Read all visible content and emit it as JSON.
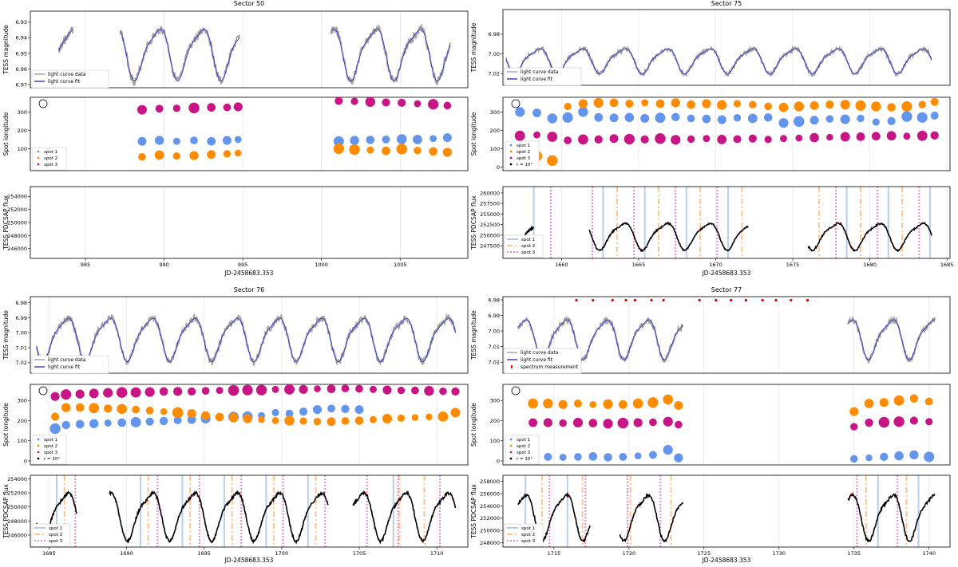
{
  "chart_data": [
    {
      "type": "line",
      "title": "Sector 50",
      "xlabel": "JD-2458683.353",
      "xlim": [
        981.5,
        1009.3
      ],
      "xticks": [
        985,
        990,
        995,
        1000,
        1005
      ],
      "mag_ylabel": "TESS magnitude",
      "mag_ylim": [
        6.923,
        6.972
      ],
      "mag_yticks": [
        6.93,
        6.94,
        6.95,
        6.96,
        6.97
      ],
      "mag_legend": [
        "light curve data",
        "light curve fit"
      ],
      "mag_segments": [
        [
          983.3,
          984.2
        ],
        [
          987.2,
          994.8
        ],
        [
          1000.6,
          1008.2
        ]
      ],
      "period": 2.75,
      "phase": 988.2,
      "mag_mean": 6.949,
      "mag_amp": 0.0155,
      "lon_ylabel": "Spot longitude",
      "lon_ylim": [
        -20,
        380
      ],
      "lon_yticks": [
        100,
        200,
        300
      ],
      "lon_legend": [
        "spot 1",
        "spot 2",
        "spot 3"
      ],
      "spots": [
        {
          "name": "spot 1",
          "times": [
            988.6,
            989.7,
            990.8,
            991.9,
            993.0,
            994.0,
            994.7,
            1001.1,
            1002.1,
            1003.1,
            1004.1,
            1005.1,
            1006.1,
            1007.1,
            1008.0
          ],
          "values": [
            140,
            145,
            140,
            145,
            140,
            145,
            150,
            140,
            145,
            148,
            150,
            152,
            150,
            155,
            160
          ]
        },
        {
          "name": "spot 2",
          "times": [
            988.6,
            989.7,
            990.8,
            991.9,
            993.0,
            994.0,
            994.7,
            1001.1,
            1002.1,
            1003.1,
            1004.1,
            1005.1,
            1006.1,
            1007.1,
            1008.0
          ],
          "values": [
            55,
            65,
            60,
            62,
            68,
            72,
            76,
            100,
            95,
            92,
            88,
            98,
            90,
            85,
            80
          ]
        },
        {
          "name": "spot 3",
          "times": [
            988.6,
            989.7,
            990.8,
            991.9,
            993.0,
            994.0,
            994.7,
            1001.1,
            1002.1,
            1003.1,
            1004.1,
            1005.1,
            1006.1,
            1007.1,
            1008.0
          ],
          "values": [
            312,
            318,
            320,
            322,
            325,
            325,
            328,
            360,
            358,
            355,
            352,
            350,
            345,
            342,
            335
          ]
        }
      ],
      "flux_ylabel": "TESS PDCSAP flux",
      "flux_ylim": [
        244500,
        255500
      ],
      "flux_yticks": [
        246000,
        248000,
        250000,
        252000,
        254000
      ],
      "flux_segments": [],
      "flux_legend": [],
      "spot_lines": []
    },
    {
      "type": "line",
      "title": "Sector 75",
      "xlabel": "JD-2458683.353",
      "xlim": [
        1656.2,
        1685.2
      ],
      "xticks": [
        1660,
        1665,
        1670,
        1675,
        1680,
        1685
      ],
      "mag_ylabel": "TESS magnitude",
      "mag_ylim": [
        6.955,
        7.032
      ],
      "mag_yticks": [
        6.98,
        7.0,
        7.02
      ],
      "mag_legend": [
        "light curve data",
        "light curve fit"
      ],
      "mag_segments": [
        [
          1656.4,
          1684.0
        ]
      ],
      "period": 2.76,
      "phase": 1659.8,
      "mag_mean": 7.006,
      "mag_amp": 0.012,
      "lon_ylabel": "Spot longitude",
      "lon_ylim": [
        -20,
        380
      ],
      "lon_yticks": [
        0,
        100,
        200,
        300
      ],
      "lon_legend": [
        "spot 1",
        "spot 2",
        "spot 3",
        "r = 10°"
      ],
      "spots": [
        {
          "name": "spot 1",
          "times": [
            1657.3,
            1658.4,
            1659.4,
            1660.4,
            1661.4,
            1662.4,
            1663.4,
            1664.4,
            1665.4,
            1666.4,
            1667.4,
            1668.4,
            1669.4,
            1670.4,
            1671.4,
            1672.4,
            1673.4,
            1674.4,
            1675.4,
            1676.4,
            1677.4,
            1678.4,
            1679.4,
            1680.4,
            1681.4,
            1682.4,
            1683.4,
            1684.2
          ],
          "values": [
            300,
            295,
            265,
            270,
            300,
            270,
            268,
            270,
            265,
            268,
            272,
            265,
            262,
            258,
            268,
            265,
            270,
            240,
            248,
            255,
            262,
            260,
            265,
            245,
            250,
            275,
            270,
            280
          ]
        },
        {
          "name": "spot 2",
          "times": [
            1657.3,
            1658.4,
            1659.4,
            1660.4,
            1661.4,
            1662.4,
            1663.4,
            1664.4,
            1665.4,
            1666.4,
            1667.4,
            1668.4,
            1669.4,
            1670.4,
            1671.4,
            1672.4,
            1673.4,
            1674.4,
            1675.4,
            1676.4,
            1677.4,
            1678.4,
            1679.4,
            1680.4,
            1681.4,
            1682.4,
            1683.4,
            1684.2
          ],
          "values": [
            70,
            60,
            35,
            330,
            345,
            350,
            350,
            345,
            350,
            345,
            350,
            340,
            345,
            338,
            345,
            340,
            330,
            325,
            330,
            335,
            340,
            340,
            335,
            330,
            325,
            330,
            340,
            355
          ]
        },
        {
          "name": "spot 3",
          "times": [
            1657.3,
            1658.4,
            1659.4,
            1660.4,
            1661.4,
            1662.4,
            1663.4,
            1664.4,
            1665.4,
            1666.4,
            1667.4,
            1668.4,
            1669.4,
            1670.4,
            1671.4,
            1672.4,
            1673.4,
            1674.4,
            1675.4,
            1676.4,
            1677.4,
            1678.4,
            1679.4,
            1680.4,
            1681.4,
            1682.4,
            1683.4,
            1684.2
          ],
          "values": [
            170,
            175,
            165,
            145,
            150,
            150,
            155,
            152,
            150,
            155,
            148,
            152,
            155,
            150,
            152,
            155,
            150,
            155,
            158,
            160,
            162,
            165,
            165,
            168,
            170,
            168,
            170,
            172
          ]
        }
      ],
      "flux_ylabel": "TESS PDCSAP flux",
      "flux_ylim": [
        244500,
        261500
      ],
      "flux_yticks": [
        247500,
        250000,
        252500,
        255000,
        257500,
        260000
      ],
      "flux_segments": [
        [
          1657.5,
          1658.2
        ],
        [
          1661.8,
          1672.1
        ],
        [
          1676.0,
          1684.0
        ]
      ],
      "flux_mean": 250000,
      "flux_amp": 3000,
      "flux_legend": [
        "spot 1",
        "spot 2",
        "spot 3"
      ],
      "spot_lines": [
        {
          "spot": "spot 1",
          "times": [
            1658.2,
            1662.7,
            1665.4,
            1668.1,
            1670.8,
            1678.5,
            1681.2,
            1683.9
          ]
        },
        {
          "spot": "spot 2",
          "times": [
            1663.6,
            1666.3,
            1669.0,
            1671.7,
            1676.7,
            1679.4,
            1682.1
          ]
        },
        {
          "spot": "spot 3",
          "times": [
            1659.3,
            1662.0,
            1664.7,
            1667.4,
            1670.1,
            1677.8,
            1680.5,
            1683.2
          ]
        }
      ]
    },
    {
      "type": "line",
      "title": "Sector 76",
      "xlabel": "JD-2458683.353",
      "xlim": [
        1683.8,
        1712.0
      ],
      "xticks": [
        1685,
        1690,
        1695,
        1700,
        1705,
        1710
      ],
      "mag_ylabel": "TESS magnitude",
      "mag_ylim": [
        6.976,
        7.027
      ],
      "mag_yticks": [
        6.98,
        6.99,
        7.0,
        7.01,
        7.02
      ],
      "mag_legend": [
        "light curve data",
        "light curve fit"
      ],
      "mag_segments": [
        [
          1684.2,
          1711.2
        ]
      ],
      "period": 2.72,
      "phase": 1684.7,
      "mag_mean": 7.003,
      "mag_amp": 0.0135,
      "lon_ylabel": "Spot longitude",
      "lon_ylim": [
        -20,
        380
      ],
      "lon_yticks": [
        0,
        100,
        200,
        300
      ],
      "lon_legend": [
        "spot 1",
        "spot 2",
        "spot 3",
        "r = 10°"
      ],
      "spots": [
        {
          "name": "spot 1",
          "times": [
            1685.4,
            1686.1,
            1687.0,
            1687.9,
            1688.8,
            1689.7,
            1690.6,
            1691.5,
            1692.4,
            1693.3,
            1694.2,
            1695.1,
            1696.0,
            1696.9,
            1697.8,
            1698.7,
            1699.6,
            1700.5,
            1701.4,
            1702.3,
            1703.2,
            1704.1,
            1705.0
          ],
          "values": [
            160,
            178,
            182,
            185,
            188,
            190,
            192,
            195,
            198,
            202,
            205,
            210,
            215,
            218,
            220,
            225,
            240,
            235,
            245,
            255,
            260,
            258,
            255
          ]
        },
        {
          "name": "spot 2",
          "times": [
            1685.4,
            1686.1,
            1687.0,
            1687.9,
            1688.8,
            1689.7,
            1690.6,
            1691.5,
            1692.4,
            1693.3,
            1694.2,
            1695.1,
            1696.0,
            1696.9,
            1697.8,
            1698.7,
            1699.6,
            1700.5,
            1701.4,
            1702.3,
            1703.2,
            1704.1,
            1705.0,
            1705.9,
            1706.8,
            1707.7,
            1708.6,
            1709.5,
            1710.4,
            1711.2
          ],
          "values": [
            220,
            265,
            265,
            262,
            260,
            258,
            255,
            250,
            245,
            240,
            235,
            225,
            218,
            215,
            210,
            205,
            200,
            200,
            198,
            195,
            195,
            198,
            200,
            205,
            210,
            212,
            215,
            218,
            220,
            240
          ]
        },
        {
          "name": "spot 3",
          "times": [
            1685.4,
            1686.1,
            1687.0,
            1687.9,
            1688.8,
            1689.7,
            1690.6,
            1691.5,
            1692.4,
            1693.3,
            1694.2,
            1695.1,
            1696.0,
            1696.9,
            1697.8,
            1698.7,
            1699.6,
            1700.5,
            1701.4,
            1702.3,
            1703.2,
            1704.1,
            1705.0,
            1705.9,
            1706.8,
            1707.7,
            1708.6,
            1709.5,
            1710.4,
            1711.2
          ],
          "values": [
            320,
            330,
            332,
            335,
            338,
            340,
            340,
            342,
            345,
            345,
            345,
            348,
            350,
            350,
            352,
            352,
            355,
            355,
            355,
            358,
            358,
            360,
            358,
            355,
            352,
            350,
            350,
            348,
            346,
            345
          ]
        }
      ],
      "flux_ylabel": "TESS PDCSAP flux",
      "flux_ylim": [
        244300,
        254500
      ],
      "flux_yticks": [
        246000,
        248000,
        250000,
        252000,
        254000
      ],
      "flux_segments": [
        [
          1684.2,
          1686.8
        ],
        [
          1688.9,
          1703.0
        ],
        [
          1704.6,
          1711.2
        ]
      ],
      "flux_mean": 249000,
      "flux_amp": 3200,
      "flux_legend": [
        "spot 1",
        "spot 2",
        "spot 3"
      ],
      "spot_lines": [
        {
          "spot": "spot 1",
          "times": [
            1685.5,
            1690.9,
            1693.6,
            1696.3,
            1699.0,
            1701.7,
            1707.2
          ]
        },
        {
          "spot": "spot 2",
          "times": [
            1686.0,
            1691.4,
            1694.1,
            1696.8,
            1699.5,
            1702.2,
            1707.6,
            1709.2
          ]
        },
        {
          "spot": "spot 3",
          "times": [
            1686.7,
            1692.0,
            1694.7,
            1697.4,
            1700.1,
            1702.8,
            1705.5,
            1707.5,
            1710.2
          ]
        }
      ]
    },
    {
      "type": "line",
      "title": "Sector 77",
      "xlabel": "JD-2458683.353",
      "xlim": [
        1711.6,
        1741.4
      ],
      "xticks": [
        1715,
        1720,
        1725,
        1730,
        1735,
        1740
      ],
      "mag_ylabel": "TESS magnitude",
      "mag_ylim": [
        6.978,
        7.027
      ],
      "mag_yticks": [
        6.98,
        6.99,
        7.0,
        7.01,
        7.02
      ],
      "mag_legend": [
        "light curve data",
        "light curve fit",
        "spectrum measurement"
      ],
      "mag_segments": [
        [
          1712.6,
          1723.6
        ],
        [
          1734.6,
          1740.4
        ]
      ],
      "period": 2.72,
      "phase": 1714.3,
      "mag_mean": 7.004,
      "mag_amp": 0.012,
      "spectrum_times": [
        1716.5,
        1717.6,
        1718.9,
        1719.8,
        1720.4,
        1721.5,
        1722.3,
        1724.7,
        1725.8,
        1726.8,
        1727.8,
        1728.9,
        1729.8,
        1730.8,
        1731.9
      ],
      "lon_ylabel": "Spot longitude",
      "lon_ylim": [
        -20,
        380
      ],
      "lon_yticks": [
        0,
        100,
        200,
        300
      ],
      "lon_legend": [
        "spot 1",
        "spot 2",
        "spot 3",
        "r = 10°"
      ],
      "spots": [
        {
          "name": "spot 1",
          "times": [
            1713.6,
            1714.6,
            1715.6,
            1716.6,
            1717.6,
            1718.6,
            1719.6,
            1720.6,
            1721.6,
            1722.6,
            1723.3,
            1735.0,
            1736.0,
            1737.0,
            1738.0,
            1739.0,
            1740.0
          ],
          "values": [
            15,
            20,
            18,
            20,
            22,
            18,
            20,
            25,
            30,
            55,
            15,
            10,
            15,
            20,
            25,
            30,
            20
          ]
        },
        {
          "name": "spot 2",
          "times": [
            1713.6,
            1714.6,
            1715.6,
            1716.6,
            1717.6,
            1718.6,
            1719.6,
            1720.6,
            1721.6,
            1722.6,
            1723.3,
            1735.0,
            1736.0,
            1737.0,
            1738.0,
            1739.0,
            1740.0
          ],
          "values": [
            285,
            285,
            280,
            285,
            280,
            282,
            280,
            285,
            290,
            305,
            275,
            245,
            285,
            290,
            300,
            310,
            295
          ]
        },
        {
          "name": "spot 3",
          "times": [
            1713.6,
            1714.6,
            1715.6,
            1716.6,
            1717.6,
            1718.6,
            1719.6,
            1720.6,
            1721.6,
            1722.6,
            1723.3,
            1735.0,
            1736.0,
            1737.0,
            1738.0,
            1739.0,
            1740.0
          ],
          "values": [
            190,
            190,
            188,
            190,
            188,
            185,
            188,
            190,
            192,
            195,
            180,
            170,
            190,
            192,
            195,
            200,
            195
          ]
        }
      ],
      "flux_ylabel": "TESS PDCSAP flux",
      "flux_ylim": [
        247300,
        259000
      ],
      "flux_yticks": [
        248000,
        250000,
        252000,
        254000,
        256000,
        258000
      ],
      "flux_segments": [
        [
          1712.6,
          1717.4
        ],
        [
          1719.4,
          1723.6
        ],
        [
          1734.6,
          1740.4
        ]
      ],
      "flux_mean": 252500,
      "flux_amp": 3500,
      "flux_legend": [
        "spot 1",
        "spot 2",
        "spot 3"
      ],
      "spot_lines": [
        {
          "spot": "spot 1",
          "times": [
            1713.1,
            1715.9,
            1736.6,
            1739.3
          ]
        },
        {
          "spot": "spot 2",
          "times": [
            1714.2,
            1716.9,
            1720.1,
            1722.8,
            1735.8,
            1738.5
          ]
        },
        {
          "spot": "spot 3",
          "times": [
            1714.7,
            1717.1,
            1719.9,
            1722.1,
            1735.2,
            1737.9
          ]
        }
      ]
    }
  ],
  "colors": {
    "data": "#a0a0a0",
    "fit": "#3333cc",
    "spot1": "#6495ed",
    "spot2": "#ff8c00",
    "spot3": "#c71585",
    "spot1_line": "#aec7e8",
    "spot2_line": "#ffbb78",
    "spot3_line": "#e377c2",
    "flux": "#000000",
    "flux_marker": "#ff0000",
    "grid": "#e0e0e0",
    "spectrum": "#ff0000"
  }
}
